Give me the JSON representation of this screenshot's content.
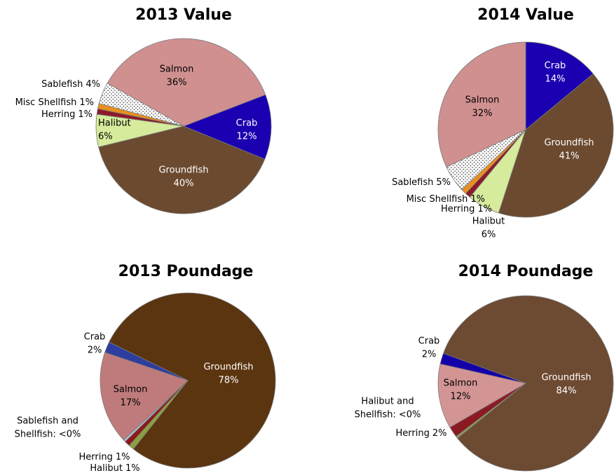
{
  "chart_data": [
    {
      "type": "pie",
      "title": "2013 Value",
      "categories": [
        "Crab",
        "Groundfish",
        "Halibut",
        "Herring",
        "Misc Shellfish",
        "Sablefish",
        "Salmon"
      ],
      "values": [
        12,
        40,
        6,
        1,
        1,
        4,
        36
      ],
      "value_labels": [
        "12%",
        "40%",
        "6%",
        "1%",
        "1%",
        "4%",
        "36%"
      ],
      "colors": [
        "#1a00b0",
        "#6b4a30",
        "#d6eb9c",
        "#8b1a2a",
        "#e8901e",
        "#ffffff",
        "#d09090"
      ],
      "patterns": [
        null,
        null,
        null,
        null,
        null,
        "dots",
        null
      ],
      "start_angle": 69
    },
    {
      "type": "pie",
      "title": "2014 Value",
      "categories": [
        "Crab",
        "Groundfish",
        "Halibut",
        "Herring",
        "Misc Shellfish",
        "Sablefish",
        "Salmon"
      ],
      "values": [
        14,
        41,
        6,
        1,
        1,
        5,
        32
      ],
      "value_labels": [
        "14%",
        "41%",
        "6%",
        "1%",
        "1%",
        "5%",
        "32%"
      ],
      "colors": [
        "#1a00b0",
        "#6b4a30",
        "#d6eb9c",
        "#8b1a2a",
        "#e8901e",
        "#ffffff",
        "#d09090"
      ],
      "patterns": [
        null,
        null,
        null,
        null,
        null,
        "dots",
        null
      ],
      "start_angle": 0
    },
    {
      "type": "pie",
      "title": "2013 Poundage",
      "categories": [
        "Groundfish",
        "Halibut",
        "Herring",
        "Sablefish and Shellfish:",
        "Salmon",
        "Crab"
      ],
      "values": [
        78,
        1,
        1,
        0.4,
        17,
        2
      ],
      "value_labels": [
        "78%",
        "1%",
        "1%",
        "<0%",
        "17%",
        "2%"
      ],
      "colors": [
        "#5a3510",
        "#8aa040",
        "#8b1a1a",
        "#b0c4de",
        "#bf7b7b",
        "#2e3e9e"
      ],
      "start_angle": 296
    },
    {
      "type": "pie",
      "title": "2014 Poundage",
      "categories": [
        "Groundfish",
        "Halibut and Shellfish:",
        "Herring",
        "Salmon",
        "Crab"
      ],
      "values": [
        84,
        0.4,
        2,
        12,
        2
      ],
      "value_labels": [
        "84%",
        "<0%",
        "2%",
        "12%",
        "2%"
      ],
      "colors": [
        "#6d4a32",
        "#8ca050",
        "#8c1a22",
        "#d39494",
        "#1400a8"
      ],
      "start_angle": 290
    }
  ]
}
